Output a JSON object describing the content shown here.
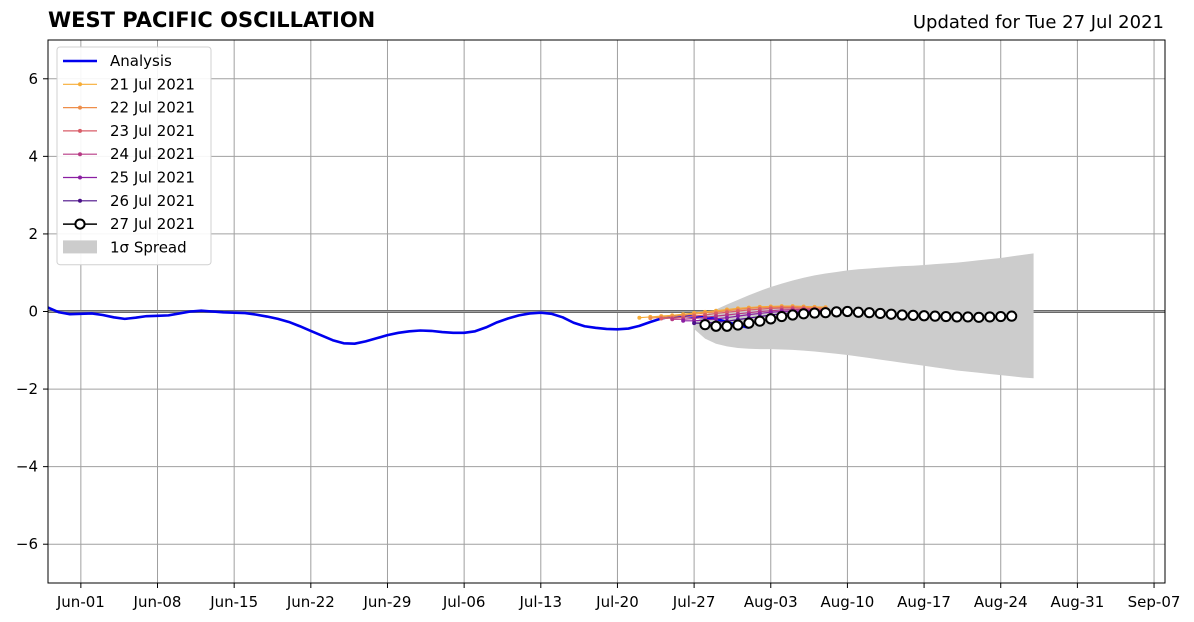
{
  "chart_data": {
    "type": "line",
    "title": "WEST PACIFIC OSCILLATION",
    "subtitle": "Updated for Tue 27 Jul 2021",
    "x_axis": {
      "start": "2021-05-29",
      "end": "2021-09-08",
      "ticks": [
        {
          "date": "2021-06-01",
          "label": "Jun-01"
        },
        {
          "date": "2021-06-08",
          "label": "Jun-08"
        },
        {
          "date": "2021-06-15",
          "label": "Jun-15"
        },
        {
          "date": "2021-06-22",
          "label": "Jun-22"
        },
        {
          "date": "2021-06-29",
          "label": "Jun-29"
        },
        {
          "date": "2021-07-06",
          "label": "Jul-06"
        },
        {
          "date": "2021-07-13",
          "label": "Jul-13"
        },
        {
          "date": "2021-07-20",
          "label": "Jul-20"
        },
        {
          "date": "2021-07-27",
          "label": "Jul-27"
        },
        {
          "date": "2021-08-03",
          "label": "Aug-03"
        },
        {
          "date": "2021-08-10",
          "label": "Aug-10"
        },
        {
          "date": "2021-08-17",
          "label": "Aug-17"
        },
        {
          "date": "2021-08-24",
          "label": "Aug-24"
        },
        {
          "date": "2021-08-31",
          "label": "Aug-31"
        },
        {
          "date": "2021-09-07",
          "label": "Sep-07"
        }
      ]
    },
    "y_axis": {
      "ylim": [
        -7,
        7
      ],
      "ticks": [
        {
          "value": 6,
          "label": "6"
        },
        {
          "value": 4,
          "label": "4"
        },
        {
          "value": 2,
          "label": "2"
        },
        {
          "value": 0,
          "label": "0"
        },
        {
          "value": -2,
          "label": "−2"
        },
        {
          "value": -4,
          "label": "−4"
        },
        {
          "value": -6,
          "label": "−6"
        }
      ]
    },
    "grid": true,
    "legend_position": "top-left",
    "analysis": {
      "name": "Analysis",
      "color": "#0000ee",
      "start": "2021-05-29",
      "values": [
        0.1,
        -0.02,
        -0.07,
        -0.06,
        -0.05,
        -0.09,
        -0.15,
        -0.19,
        -0.16,
        -0.12,
        -0.11,
        -0.1,
        -0.05,
        0.0,
        0.02,
        0.0,
        -0.02,
        -0.03,
        -0.04,
        -0.08,
        -0.13,
        -0.19,
        -0.27,
        -0.38,
        -0.5,
        -0.62,
        -0.74,
        -0.82,
        -0.83,
        -0.77,
        -0.69,
        -0.61,
        -0.55,
        -0.51,
        -0.49,
        -0.5,
        -0.53,
        -0.55,
        -0.55,
        -0.51,
        -0.41,
        -0.28,
        -0.18,
        -0.1,
        -0.05,
        -0.03,
        -0.06,
        -0.15,
        -0.29,
        -0.38,
        -0.42,
        -0.45,
        -0.46,
        -0.44,
        -0.37,
        -0.27,
        -0.18,
        -0.13,
        -0.12,
        -0.13,
        -0.15,
        -0.19,
        -0.27,
        -0.35,
        -0.42
      ]
    },
    "forecasts": [
      {
        "name": "21 Jul 2021",
        "color": "#f7ad36",
        "start": "2021-07-22",
        "values": [
          -0.16,
          -0.14,
          -0.12,
          -0.1,
          -0.07,
          -0.04,
          -0.01,
          0.02,
          0.05,
          0.08,
          0.1,
          0.12,
          0.13,
          0.14,
          0.14,
          0.13,
          0.12,
          0.11
        ]
      },
      {
        "name": "22 Jul 2021",
        "color": "#ee8e4a",
        "start": "2021-07-23",
        "values": [
          -0.17,
          -0.15,
          -0.13,
          -0.1,
          -0.07,
          -0.04,
          -0.01,
          0.02,
          0.05,
          0.08,
          0.1,
          0.11,
          0.12,
          0.12,
          0.11,
          0.1,
          0.09
        ]
      },
      {
        "name": "23 Jul 2021",
        "color": "#d95d68",
        "start": "2021-07-24",
        "values": [
          -0.18,
          -0.17,
          -0.15,
          -0.12,
          -0.09,
          -0.05,
          -0.02,
          0.01,
          0.04,
          0.06,
          0.08,
          0.09,
          0.09,
          0.08,
          0.07,
          0.06
        ]
      },
      {
        "name": "24 Jul 2021",
        "color": "#b73a85",
        "start": "2021-07-25",
        "values": [
          -0.2,
          -0.2,
          -0.18,
          -0.15,
          -0.12,
          -0.09,
          -0.06,
          -0.03,
          0.0,
          0.02,
          0.04,
          0.05,
          0.05,
          0.04,
          0.03
        ]
      },
      {
        "name": "25 Jul 2021",
        "color": "#8b1ea2",
        "start": "2021-07-26",
        "values": [
          -0.24,
          -0.24,
          -0.22,
          -0.19,
          -0.16,
          -0.12,
          -0.08,
          -0.05,
          -0.02,
          0.0,
          0.01,
          0.02,
          0.02,
          0.01
        ]
      },
      {
        "name": "26 Jul 2021",
        "color": "#4a0f88",
        "start": "2021-07-27",
        "values": [
          -0.3,
          -0.3,
          -0.28,
          -0.25,
          -0.21,
          -0.17,
          -0.13,
          -0.09,
          -0.06,
          -0.03,
          -0.01,
          0.0,
          0.0
        ]
      },
      {
        "name": "27 Jul 2021",
        "color": "#000000",
        "start": "2021-07-28",
        "values": [
          -0.34,
          -0.38,
          -0.38,
          -0.35,
          -0.3,
          -0.25,
          -0.19,
          -0.13,
          -0.09,
          -0.06,
          -0.04,
          -0.03,
          -0.01,
          0.0,
          -0.02,
          -0.03,
          -0.05,
          -0.07,
          -0.09,
          -0.1,
          -0.11,
          -0.12,
          -0.13,
          -0.14,
          -0.14,
          -0.15,
          -0.14,
          -0.13,
          -0.12
        ]
      }
    ],
    "spread": {
      "name": "1σ Spread",
      "color": "#cccccc",
      "start": "2021-07-27",
      "upper": [
        -0.3,
        -0.1,
        0.05,
        0.18,
        0.3,
        0.42,
        0.53,
        0.63,
        0.72,
        0.8,
        0.87,
        0.93,
        0.98,
        1.02,
        1.06,
        1.09,
        1.11,
        1.13,
        1.15,
        1.17,
        1.18,
        1.2,
        1.22,
        1.24,
        1.26,
        1.29,
        1.32,
        1.35,
        1.38,
        1.42,
        1.46,
        1.5
      ],
      "lower": [
        -0.45,
        -0.7,
        -0.83,
        -0.9,
        -0.94,
        -0.96,
        -0.97,
        -0.97,
        -0.98,
        -0.99,
        -1.01,
        -1.03,
        -1.06,
        -1.09,
        -1.12,
        -1.16,
        -1.2,
        -1.24,
        -1.28,
        -1.32,
        -1.36,
        -1.4,
        -1.44,
        -1.48,
        -1.52,
        -1.55,
        -1.58,
        -1.61,
        -1.64,
        -1.67,
        -1.7,
        -1.72
      ]
    }
  }
}
